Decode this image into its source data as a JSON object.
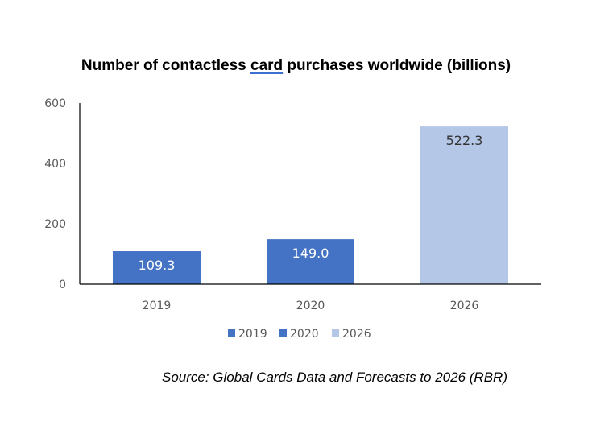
{
  "title_pre": "Number of contactless ",
  "title_underlined": "card",
  "title_post": " purchases worldwide (billions)",
  "source": "Source: Global Cards Data and Forecasts to 2026 (RBR)",
  "chart_data": {
    "type": "bar",
    "categories": [
      "2019",
      "2020",
      "2026"
    ],
    "values": [
      109.3,
      149.0,
      522.3
    ],
    "data_labels": [
      "109.3",
      "149.0",
      "522.3"
    ],
    "colors": [
      "#4472c4",
      "#4472c4",
      "#b4c7e7"
    ],
    "legend": [
      "2019",
      "2020",
      "2026"
    ],
    "legend_position": "bottom",
    "ylim": [
      0,
      600
    ],
    "yticks": [
      0,
      200,
      400,
      600
    ],
    "grid": false,
    "label_color_dark": "#ffffff",
    "label_color_light": "#333333",
    "axis_color": "#000000",
    "tick_text_color": "#595959"
  }
}
